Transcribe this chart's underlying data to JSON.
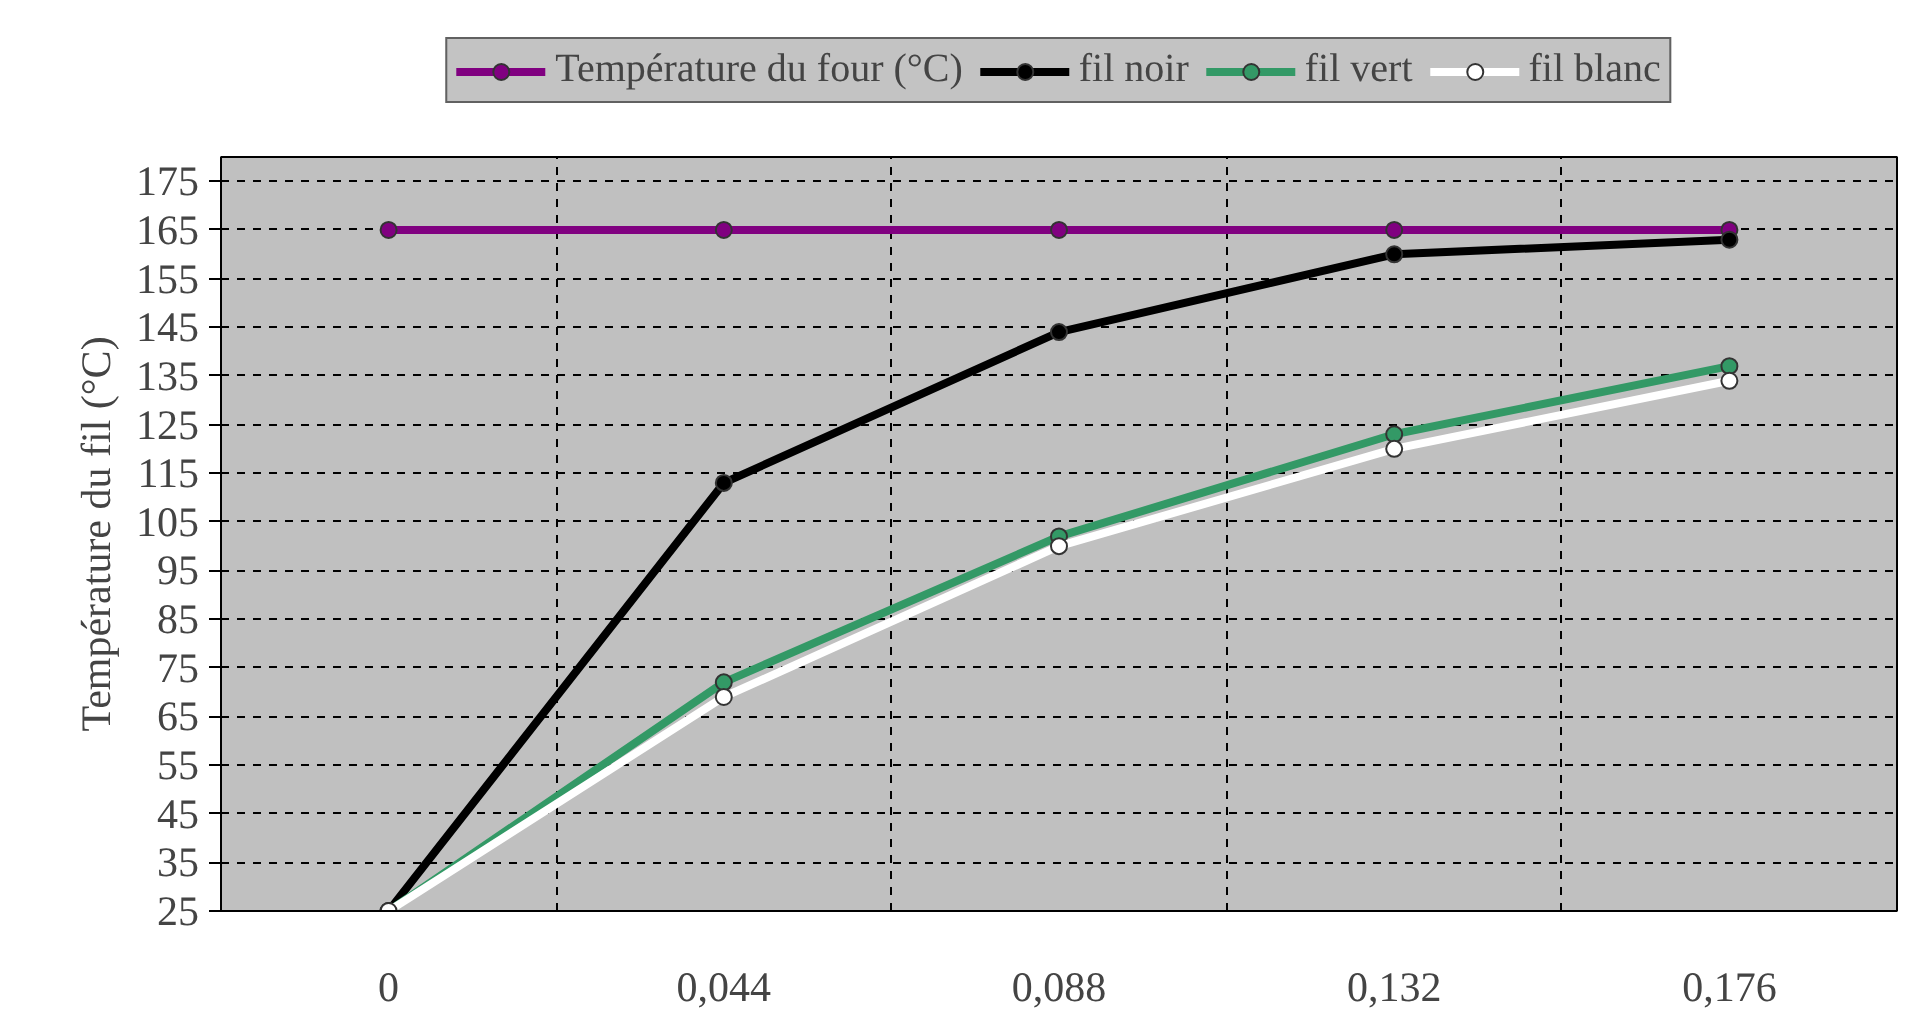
{
  "chart_data": {
    "type": "line",
    "ylabel": "Température du fil (°C)",
    "categories": [
      "0",
      "0,044",
      "0,088",
      "0,132",
      "0,176"
    ],
    "series": [
      {
        "name": "Température du four (°C)",
        "color": "#800080",
        "values": [
          165,
          165,
          165,
          165,
          165
        ]
      },
      {
        "name": "fil noir",
        "color": "#000000",
        "values": [
          25,
          113,
          144,
          160,
          163
        ]
      },
      {
        "name": "fil vert",
        "color": "#339966",
        "values": [
          25,
          72,
          102,
          123,
          137
        ]
      },
      {
        "name": "fil blanc",
        "color": "#ffffff",
        "values": [
          25,
          69,
          100,
          120,
          134
        ]
      }
    ],
    "ylim": [
      25,
      180
    ],
    "yticks": [
      25,
      35,
      45,
      55,
      65,
      75,
      85,
      95,
      105,
      115,
      125,
      135,
      145,
      155,
      165,
      175
    ],
    "grid": true,
    "legend": "top",
    "marker": "circle",
    "line_style": "solid"
  }
}
